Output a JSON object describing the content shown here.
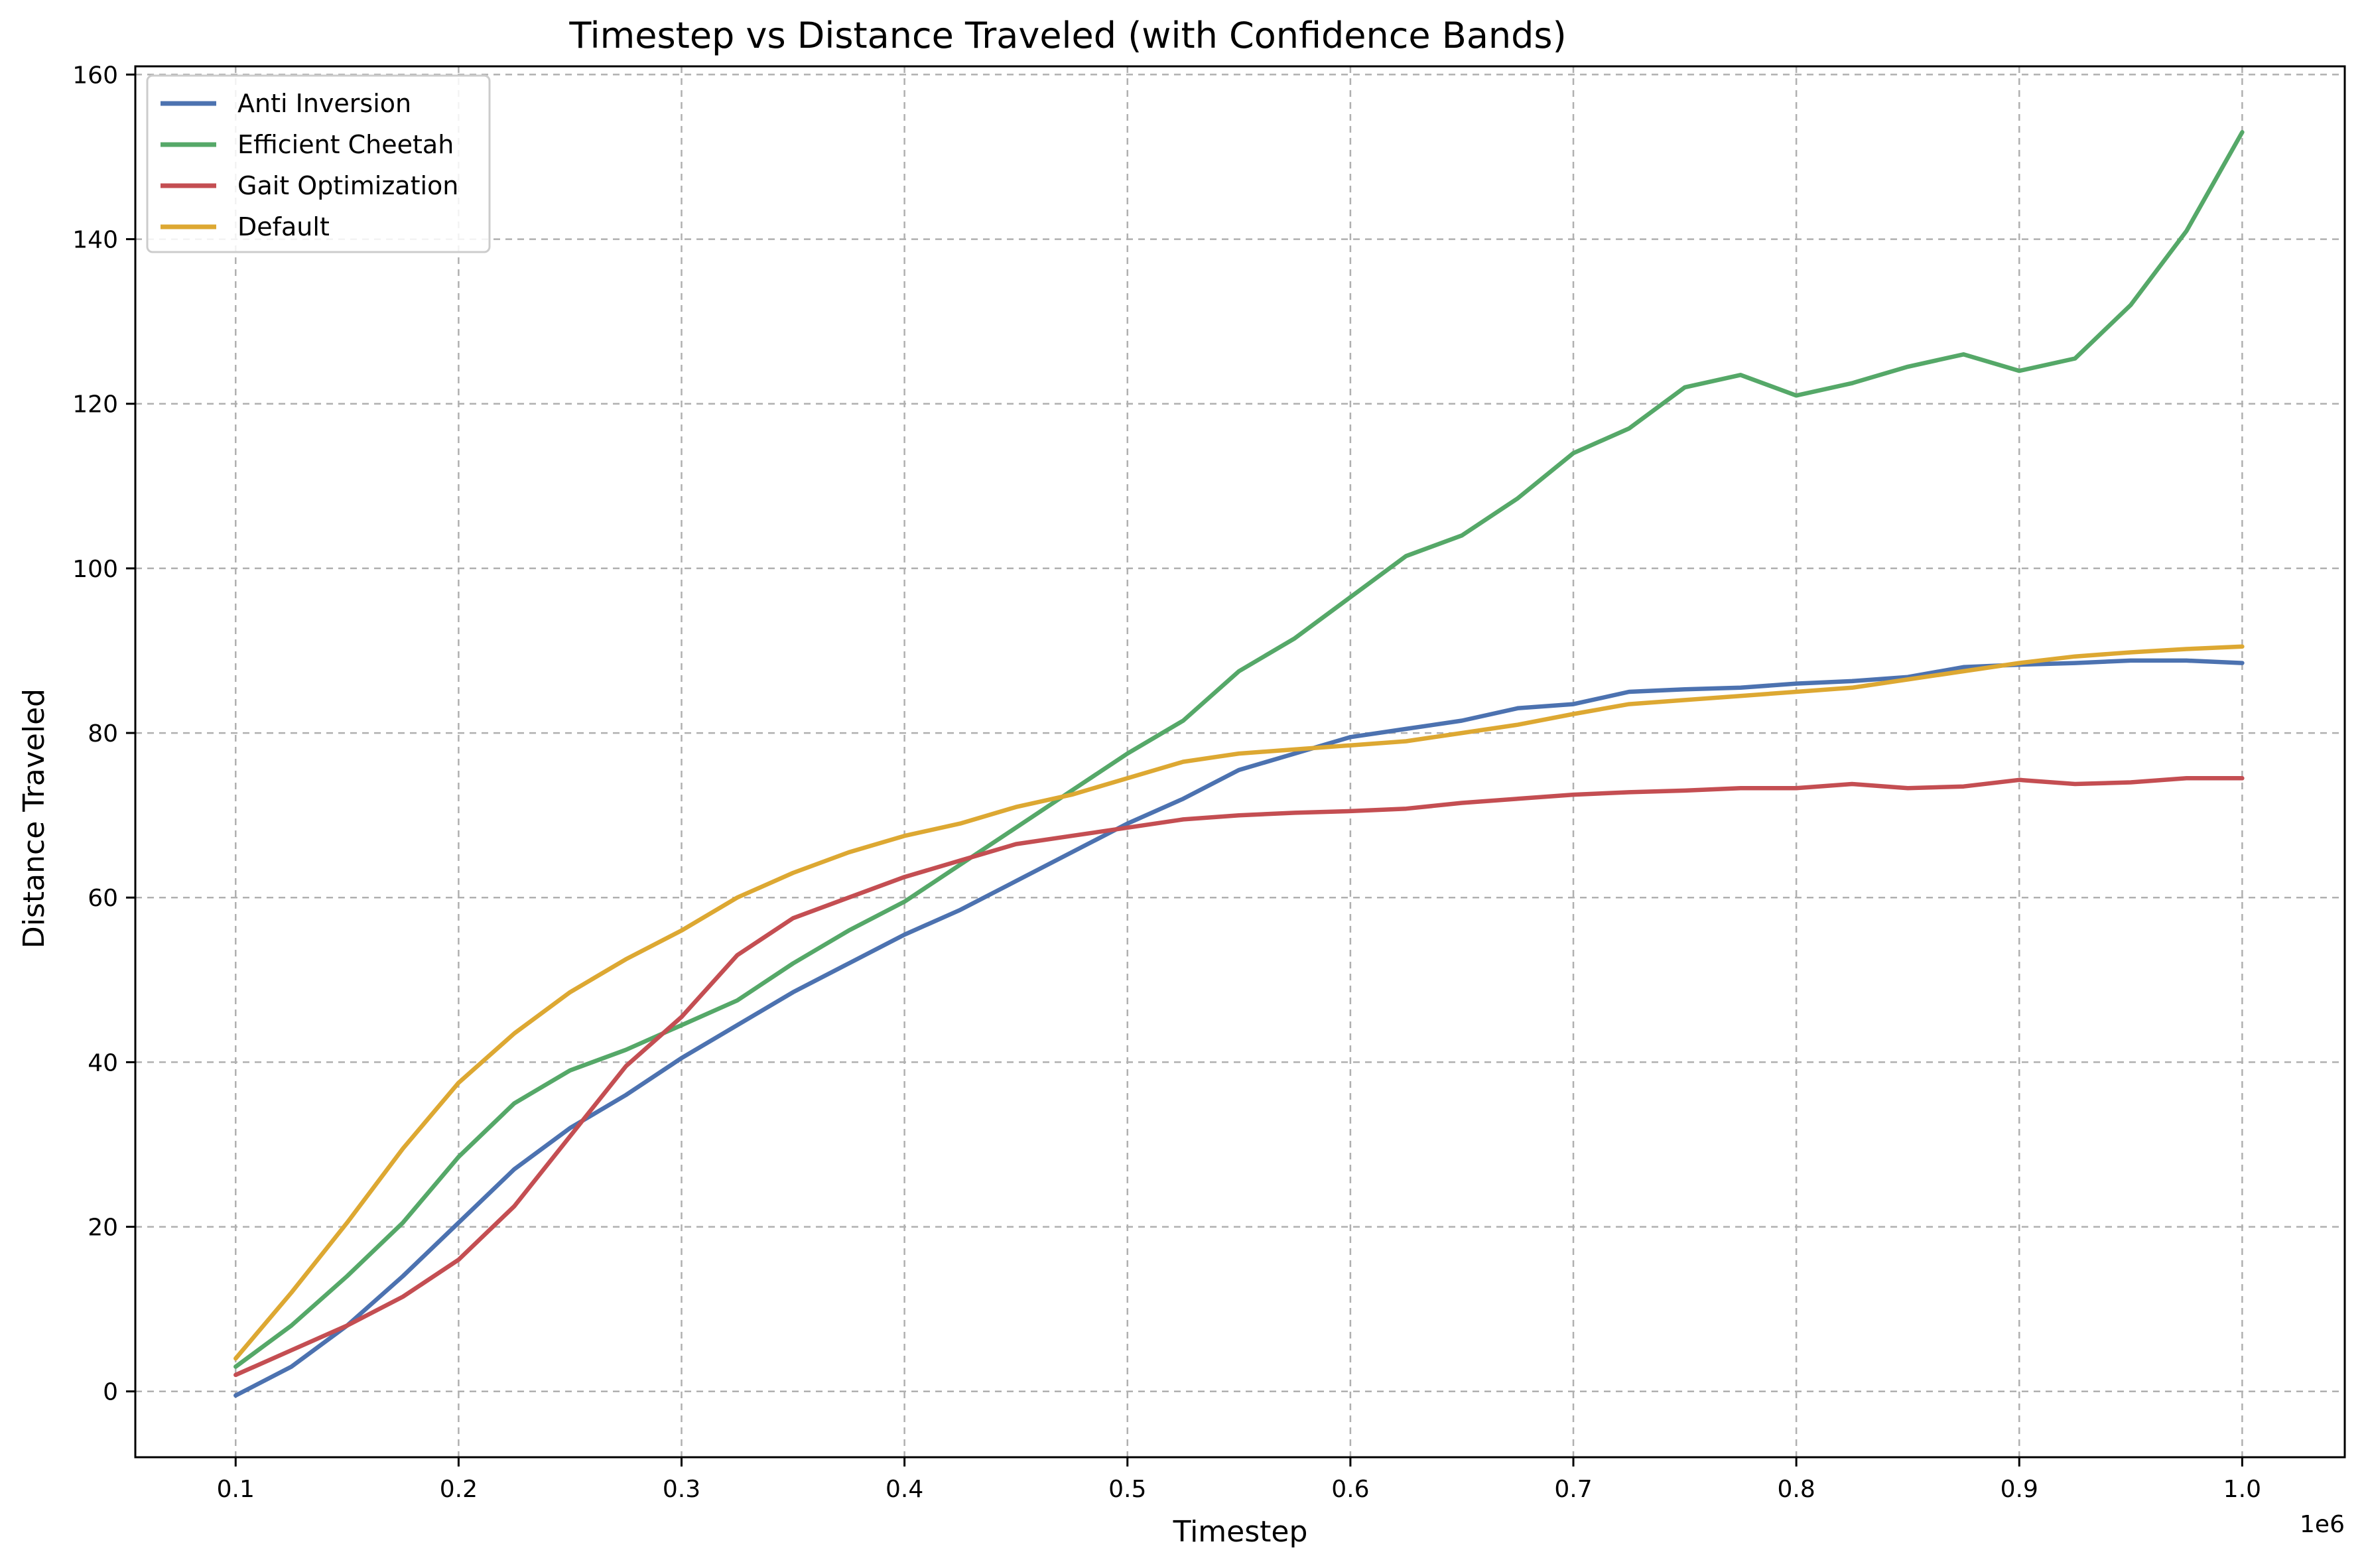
{
  "chart_data": {
    "type": "line",
    "title": "Timestep vs Distance Traveled (with Confidence Bands)",
    "xlabel": "Timestep",
    "ylabel": "Distance Traveled",
    "x_offset_label": "1e6",
    "xlim": [
      0.055,
      1.046
    ],
    "ylim": [
      -8,
      161
    ],
    "xticks": [
      0.1,
      0.2,
      0.3,
      0.4,
      0.5,
      0.6,
      0.7,
      0.8,
      0.9,
      1.0
    ],
    "xtick_labels": [
      "0.1",
      "0.2",
      "0.3",
      "0.4",
      "0.5",
      "0.6",
      "0.7",
      "0.8",
      "0.9",
      "1.0"
    ],
    "yticks": [
      0,
      20,
      40,
      60,
      80,
      100,
      120,
      140,
      160
    ],
    "ytick_labels": [
      "0",
      "20",
      "40",
      "60",
      "80",
      "100",
      "120",
      "140",
      "160"
    ],
    "grid": true,
    "legend_position": "upper-left",
    "x": [
      0.1,
      0.125,
      0.15,
      0.175,
      0.2,
      0.225,
      0.25,
      0.275,
      0.3,
      0.325,
      0.35,
      0.375,
      0.4,
      0.425,
      0.45,
      0.475,
      0.5,
      0.525,
      0.55,
      0.575,
      0.6,
      0.625,
      0.65,
      0.675,
      0.7,
      0.725,
      0.75,
      0.775,
      0.8,
      0.825,
      0.85,
      0.875,
      0.9,
      0.925,
      0.95,
      0.975,
      1.0
    ],
    "series": [
      {
        "name": "Anti Inversion",
        "color": "#4C72B0",
        "values": [
          -0.5,
          3,
          8,
          14,
          20.5,
          27,
          32,
          36,
          40.5,
          44.5,
          48.5,
          52,
          55.5,
          58.5,
          62,
          65.5,
          69,
          72,
          75.5,
          77.5,
          79.5,
          80.5,
          81.5,
          83,
          83.5,
          85,
          85.3,
          85.5,
          86,
          86.3,
          86.8,
          88,
          88.3,
          88.5,
          88.8,
          88.8,
          88.5
        ]
      },
      {
        "name": "Efficient Cheetah",
        "color": "#55A868",
        "values": [
          3,
          8,
          14,
          20.5,
          28.5,
          35,
          39,
          41.5,
          44.5,
          47.5,
          52,
          56,
          59.5,
          64,
          68.5,
          73,
          77.5,
          81.5,
          87.5,
          91.5,
          96.5,
          101.5,
          104,
          108.5,
          114,
          117,
          122,
          123.5,
          121,
          122.5,
          124.5,
          126,
          124,
          125.5,
          132,
          141,
          153
        ]
      },
      {
        "name": "Gait Optimization",
        "color": "#C44E52",
        "values": [
          2,
          5,
          8,
          11.5,
          16,
          22.5,
          31,
          39.5,
          45.5,
          53,
          57.5,
          60,
          62.5,
          64.5,
          66.5,
          67.5,
          68.5,
          69.5,
          70,
          70.3,
          70.5,
          70.8,
          71.5,
          72,
          72.5,
          72.8,
          73,
          73.3,
          73.3,
          73.8,
          73.3,
          73.5,
          74.3,
          73.8,
          74,
          74.5,
          74.5
        ]
      },
      {
        "name": "Default",
        "color": "#DDA832",
        "values": [
          4,
          12,
          20.5,
          29.5,
          37.5,
          43.5,
          48.5,
          52.5,
          56,
          60,
          63,
          65.5,
          67.5,
          69,
          71,
          72.5,
          74.5,
          76.5,
          77.5,
          78,
          78.5,
          79,
          80,
          81,
          82.3,
          83.5,
          84,
          84.5,
          85,
          85.5,
          86.5,
          87.5,
          88.5,
          89.3,
          89.8,
          90.2,
          90.5
        ]
      }
    ]
  }
}
